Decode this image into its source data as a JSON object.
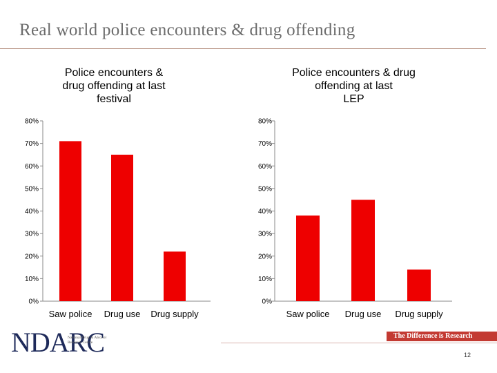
{
  "slide": {
    "title": "Real world police encounters & drug offending",
    "page_number": "12",
    "tagline": "The Difference is Research",
    "logo": {
      "text": "NDARC",
      "subtitle": "National Drug & Alcohol Research Centre"
    }
  },
  "colors": {
    "bar": "#ee0000",
    "axis": "#888888",
    "title": "#6b6b6b",
    "brand": "#c33a32"
  },
  "chart_data": [
    {
      "type": "bar",
      "title": "Police encounters & drug offending at last festival",
      "title_lines": [
        "Police encounters &",
        "drug offending at last",
        "festival"
      ],
      "categories": [
        "Saw police",
        "Drug use",
        "Drug supply"
      ],
      "values": [
        71,
        65,
        22
      ],
      "ylim": [
        0,
        80
      ],
      "yticks": [
        0,
        10,
        20,
        30,
        40,
        50,
        60,
        70,
        80
      ],
      "ytick_labels": [
        "0%",
        "10%",
        "20%",
        "30%",
        "40%",
        "50%",
        "60%",
        "70%",
        "80%"
      ],
      "grid": false
    },
    {
      "type": "bar",
      "title": "Police encounters & drug offending at last LEP",
      "title_lines": [
        "Police encounters & drug",
        "offending at last",
        "LEP"
      ],
      "categories": [
        "Saw police",
        "Drug use",
        "Drug supply"
      ],
      "values": [
        38,
        45,
        14
      ],
      "ylim": [
        0,
        80
      ],
      "yticks": [
        0,
        10,
        20,
        30,
        40,
        50,
        60,
        70,
        80
      ],
      "ytick_labels": [
        "0%",
        "10%",
        "20%",
        "30%",
        "40%",
        "50%",
        "60%",
        "70%",
        "80%"
      ],
      "grid": false
    }
  ]
}
